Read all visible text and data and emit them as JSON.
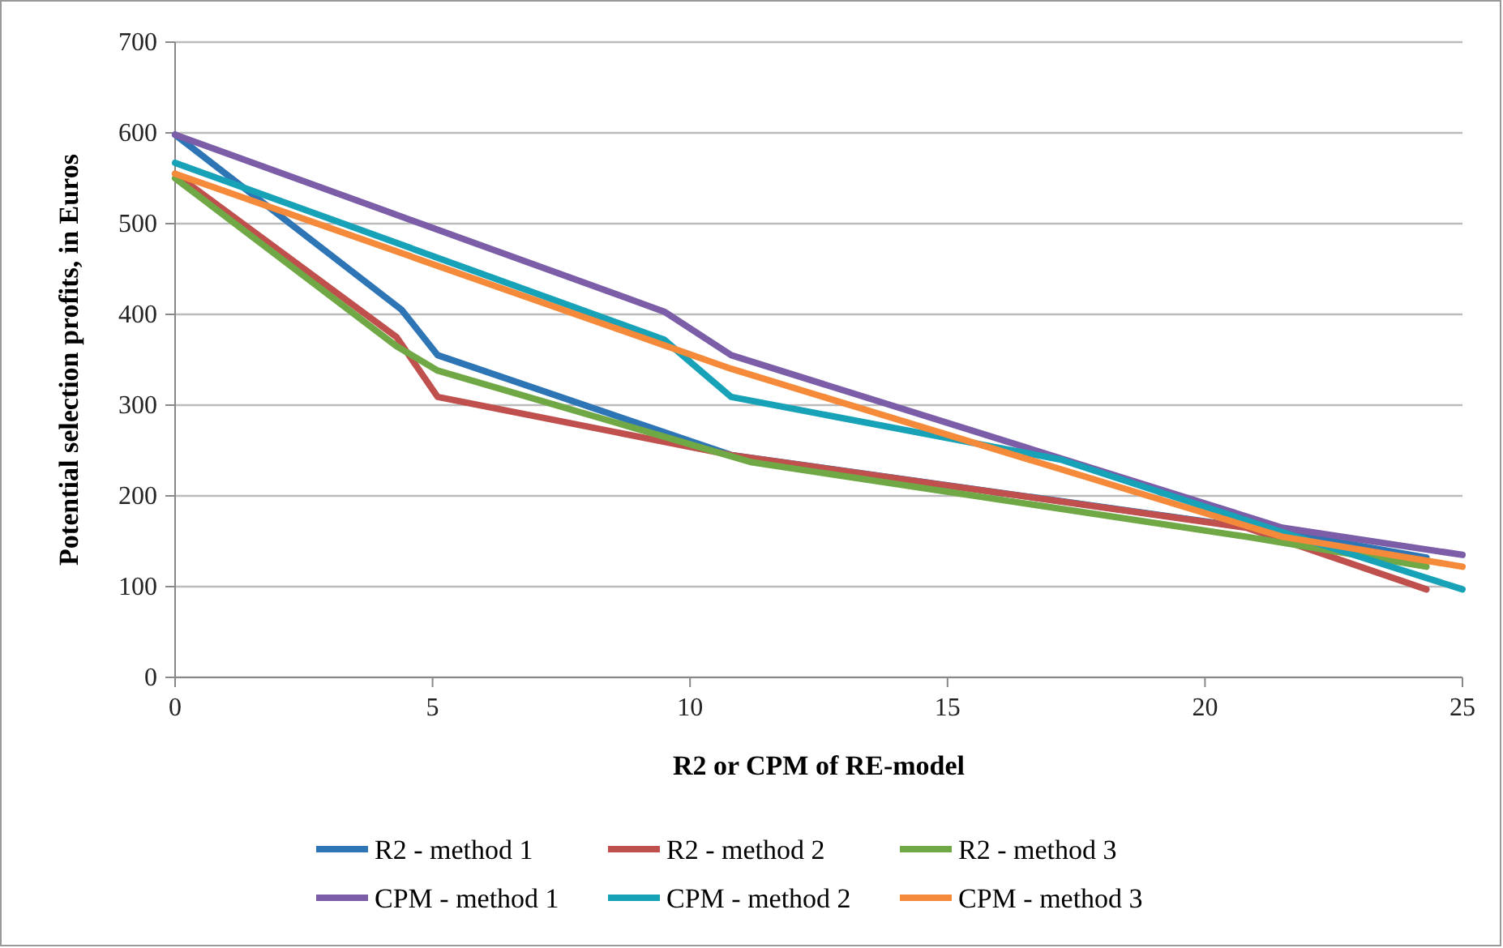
{
  "chart_data": {
    "type": "line",
    "xlabel": "R2 or CPM of RE-model",
    "ylabel": "Potential selection profits, in Euros",
    "xlim": [
      0,
      25
    ],
    "xticks": [
      0,
      5,
      10,
      15,
      20,
      25
    ],
    "ylim": [
      0,
      700
    ],
    "yticks": [
      0,
      100,
      200,
      300,
      400,
      500,
      600,
      700
    ],
    "grid": "y",
    "legend": "bottom",
    "marker": "none",
    "line_style": "solid",
    "series": [
      {
        "name": "R2 - method 1",
        "color": "#2e75b6",
        "x": [
          0,
          4.4,
          5.1,
          10.8,
          21.5,
          24.3
        ],
        "values": [
          598,
          405,
          355,
          245,
          160,
          132
        ]
      },
      {
        "name": "R2 - method 2",
        "color": "#c0504d",
        "x": [
          0,
          4.3,
          5.1,
          10.8,
          20.8,
          24.3
        ],
        "values": [
          555,
          375,
          309,
          245,
          165,
          97
        ]
      },
      {
        "name": "R2 - method 3",
        "color": "#70a845",
        "x": [
          0,
          4.3,
          5.1,
          11.2,
          20.8,
          24.3
        ],
        "values": [
          550,
          365,
          338,
          237,
          155,
          122
        ]
      },
      {
        "name": "CPM - method 1",
        "color": "#7b5ea7",
        "x": [
          0,
          9.5,
          10.8,
          21.5,
          25
        ],
        "values": [
          598,
          403,
          355,
          165,
          135
        ]
      },
      {
        "name": "CPM - method 2",
        "color": "#17a2b8",
        "x": [
          0,
          9.5,
          10.8,
          17.2,
          21.5,
          25
        ],
        "values": [
          567,
          372,
          309,
          240,
          160,
          97
        ]
      },
      {
        "name": "CPM - method 3",
        "color": "#f58a3a",
        "x": [
          0,
          10.8,
          21.5,
          25
        ],
        "values": [
          555,
          340,
          155,
          122
        ]
      }
    ]
  }
}
